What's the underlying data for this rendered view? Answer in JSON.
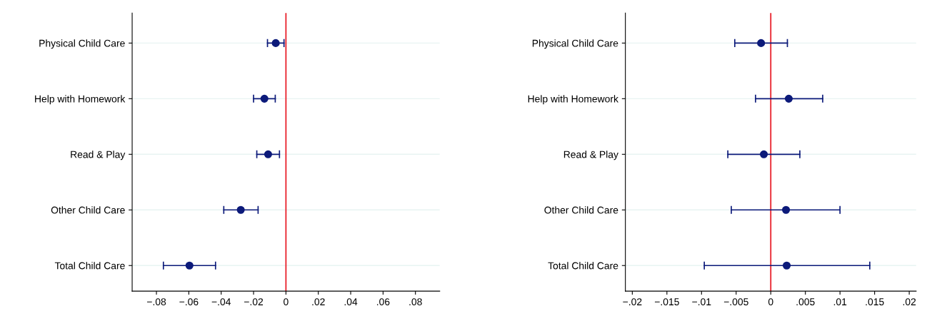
{
  "chart_data": [
    {
      "type": "scatter",
      "orientation": "horizontal",
      "categories": [
        "Physical Child Care",
        "Help with Homework",
        "Read & Play",
        "Other Child Care",
        "Total Child Care"
      ],
      "series": [
        {
          "color": "#0c1a7a",
          "values": [
            -0.0063,
            -0.0133,
            -0.011,
            -0.0279,
            -0.0596
          ],
          "errors": [
            [
              -0.0114,
              -0.0012
            ],
            [
              -0.02,
              -0.0066
            ],
            [
              -0.018,
              -0.004
            ],
            [
              -0.0384,
              -0.0172
            ],
            [
              -0.0757,
              -0.0435
            ]
          ]
        }
      ],
      "xlim": [
        -0.095,
        0.095
      ],
      "xticks": [
        {
          "value": -0.08,
          "label": "−.08"
        },
        {
          "value": -0.06,
          "label": "−.06"
        },
        {
          "value": -0.04,
          "label": "−.04"
        },
        {
          "value": -0.02,
          "label": "−.02"
        },
        0,
        {
          "value": 0.02,
          "label": ".02"
        },
        {
          "value": 0.04,
          "label": ".04"
        },
        {
          "value": 0.06,
          "label": ".06"
        },
        {
          "value": 0.08,
          "label": ".08"
        }
      ],
      "ref_lines": [
        {
          "axis": "x",
          "value": 0,
          "color": "#e8202a"
        }
      ],
      "grid": "y",
      "marker": "circle"
    },
    {
      "type": "scatter",
      "orientation": "horizontal",
      "categories": [
        "Physical Child Care",
        "Help with Homework",
        "Read & Play",
        "Other Child Care",
        "Total Child Care"
      ],
      "series": [
        {
          "color": "#0c1a7a",
          "values": [
            -0.0014,
            0.0026,
            -0.001,
            0.0022,
            0.0023
          ],
          "errors": [
            [
              -0.0052,
              0.0024
            ],
            [
              -0.0022,
              0.0075
            ],
            [
              -0.0062,
              0.0042
            ],
            [
              -0.0057,
              0.01
            ],
            [
              -0.0096,
              0.0143
            ]
          ]
        }
      ],
      "xlim": [
        -0.021,
        0.021
      ],
      "xticks": [
        {
          "value": -0.02,
          "label": "−.02"
        },
        {
          "value": -0.015,
          "label": "−.015"
        },
        {
          "value": -0.01,
          "label": "−.01"
        },
        {
          "value": -0.005,
          "label": "−.005"
        },
        0,
        {
          "value": 0.005,
          "label": ".005"
        },
        {
          "value": 0.01,
          "label": ".01"
        },
        {
          "value": 0.015,
          "label": ".015"
        },
        {
          "value": 0.02,
          "label": ".02"
        }
      ],
      "ref_lines": [
        {
          "axis": "x",
          "value": 0,
          "color": "#e8202a"
        }
      ],
      "grid": "y",
      "marker": "circle"
    }
  ]
}
